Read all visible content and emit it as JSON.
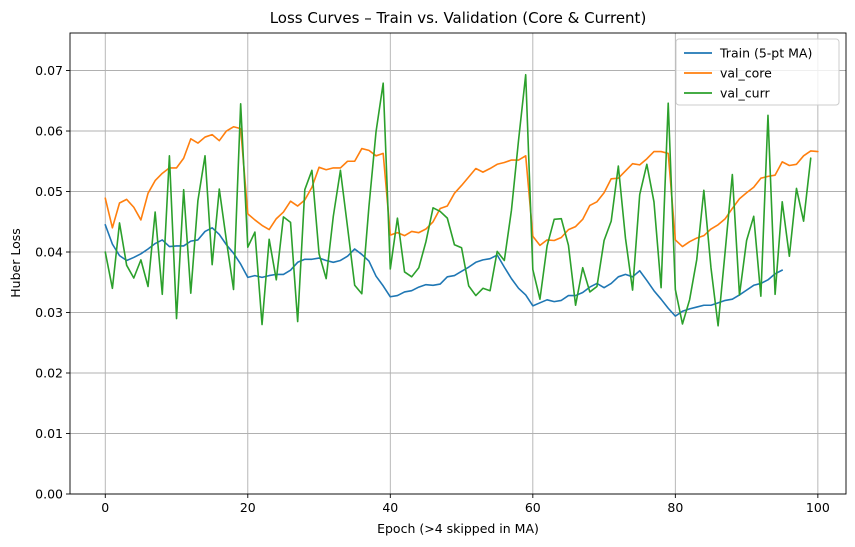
{
  "chart_data": {
    "type": "line",
    "title": "Loss Curves – Train vs. Validation (Core & Current)",
    "xlabel": "Epoch (>4 skipped in MA)",
    "ylabel": "Huber Loss",
    "xlim": [
      -4.95,
      103.95
    ],
    "ylim": [
      0,
      0.0762
    ],
    "xticks": [
      0,
      20,
      40,
      60,
      80,
      100
    ],
    "xtick_labels": [
      "0",
      "20",
      "40",
      "60",
      "80",
      "100"
    ],
    "yticks": [
      0,
      0.01,
      0.02,
      0.03,
      0.04,
      0.05,
      0.06,
      0.07
    ],
    "ytick_labels": [
      "0.00",
      "0.01",
      "0.02",
      "0.03",
      "0.04",
      "0.05",
      "0.06",
      "0.07"
    ],
    "grid": true,
    "legend_position": "top-right",
    "series": [
      {
        "name": "Train (5-pt MA)",
        "color": "#1f77b4",
        "x_start": 0,
        "values": [
          0.0445,
          0.0413,
          0.0394,
          0.0386,
          0.0391,
          0.0397,
          0.0405,
          0.0414,
          0.042,
          0.0409,
          0.041,
          0.041,
          0.0418,
          0.042,
          0.0434,
          0.044,
          0.0429,
          0.0412,
          0.0398,
          0.038,
          0.0358,
          0.0361,
          0.0358,
          0.0361,
          0.0363,
          0.0363,
          0.037,
          0.0383,
          0.0388,
          0.0388,
          0.039,
          0.0386,
          0.0383,
          0.0386,
          0.0393,
          0.0405,
          0.0396,
          0.0385,
          0.036,
          0.0344,
          0.0326,
          0.0328,
          0.0334,
          0.0336,
          0.0342,
          0.0346,
          0.0345,
          0.0347,
          0.0359,
          0.0361,
          0.0368,
          0.0375,
          0.0383,
          0.0387,
          0.0389,
          0.0395,
          0.0375,
          0.0356,
          0.034,
          0.0329,
          0.0311,
          0.0316,
          0.0321,
          0.0318,
          0.032,
          0.0328,
          0.0328,
          0.0333,
          0.0342,
          0.0348,
          0.0341,
          0.0348,
          0.0359,
          0.0363,
          0.0359,
          0.0369,
          0.0353,
          0.0336,
          0.0322,
          0.0307,
          0.0294,
          0.0302,
          0.0306,
          0.0309,
          0.0312,
          0.0312,
          0.0316,
          0.032,
          0.0322,
          0.0329,
          0.0337,
          0.0345,
          0.0348,
          0.0354,
          0.0364,
          0.037
        ]
      },
      {
        "name": "val_core",
        "color": "#ff7f0e",
        "x_start": 0,
        "values": [
          0.0489,
          0.044,
          0.0481,
          0.0487,
          0.0474,
          0.0453,
          0.0497,
          0.0518,
          0.053,
          0.0539,
          0.0539,
          0.0555,
          0.0587,
          0.058,
          0.059,
          0.0594,
          0.0584,
          0.06,
          0.0607,
          0.0604,
          0.0463,
          0.0453,
          0.0444,
          0.0437,
          0.0455,
          0.0466,
          0.0484,
          0.0476,
          0.0486,
          0.0507,
          0.054,
          0.0536,
          0.0539,
          0.0539,
          0.055,
          0.055,
          0.0571,
          0.0568,
          0.0559,
          0.0563,
          0.0428,
          0.0432,
          0.0427,
          0.0434,
          0.0432,
          0.0438,
          0.045,
          0.0472,
          0.0476,
          0.0497,
          0.051,
          0.0524,
          0.0538,
          0.0532,
          0.0538,
          0.0545,
          0.0548,
          0.0552,
          0.0552,
          0.0559,
          0.0426,
          0.0411,
          0.042,
          0.0419,
          0.0424,
          0.0437,
          0.0442,
          0.0454,
          0.0477,
          0.0483,
          0.0498,
          0.0521,
          0.0522,
          0.0534,
          0.0546,
          0.0544,
          0.0554,
          0.0566,
          0.0566,
          0.0563,
          0.042,
          0.0409,
          0.0417,
          0.0423,
          0.0427,
          0.0438,
          0.0445,
          0.0455,
          0.0472,
          0.0488,
          0.0498,
          0.0507,
          0.0522,
          0.0525,
          0.0527,
          0.0549,
          0.0543,
          0.0545,
          0.0559,
          0.0567,
          0.0566
        ]
      },
      {
        "name": "val_curr",
        "color": "#2ca02c",
        "x_start": 0,
        "values": [
          0.04,
          0.034,
          0.0448,
          0.0378,
          0.0357,
          0.0387,
          0.0343,
          0.0466,
          0.033,
          0.0559,
          0.029,
          0.0503,
          0.0332,
          0.0485,
          0.0559,
          0.0379,
          0.0504,
          0.0419,
          0.0338,
          0.0645,
          0.0408,
          0.0433,
          0.028,
          0.0421,
          0.0354,
          0.0458,
          0.0449,
          0.0285,
          0.0503,
          0.0535,
          0.0397,
          0.0356,
          0.0459,
          0.0535,
          0.0441,
          0.0345,
          0.0331,
          0.0475,
          0.0599,
          0.0679,
          0.0372,
          0.0456,
          0.0367,
          0.0359,
          0.0374,
          0.0417,
          0.0473,
          0.0467,
          0.0456,
          0.0412,
          0.0407,
          0.0344,
          0.0328,
          0.034,
          0.0336,
          0.0401,
          0.0386,
          0.0469,
          0.0585,
          0.0693,
          0.0371,
          0.0322,
          0.041,
          0.0454,
          0.0455,
          0.0411,
          0.0312,
          0.0374,
          0.0334,
          0.0343,
          0.0419,
          0.0451,
          0.0542,
          0.0423,
          0.0337,
          0.0495,
          0.0545,
          0.0483,
          0.0341,
          0.0646,
          0.0338,
          0.0281,
          0.0321,
          0.0387,
          0.0502,
          0.0374,
          0.0278,
          0.0402,
          0.0528,
          0.0329,
          0.0419,
          0.0459,
          0.0327,
          0.0626,
          0.033,
          0.0483,
          0.0393,
          0.0505,
          0.0451,
          0.0555
        ]
      }
    ]
  }
}
